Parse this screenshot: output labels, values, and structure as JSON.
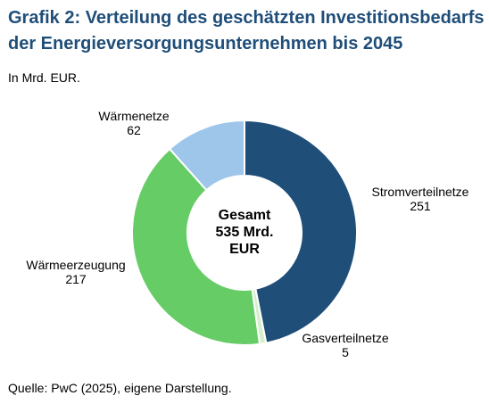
{
  "header": {
    "title_line1": "Grafik 2: Verteilung des geschätzten Investitionsbedarfs",
    "title_line2": "der Energieversorgungsunternehmen bis 2045",
    "subtitle": "In Mrd. EUR."
  },
  "footer": {
    "source": "Quelle: PwC (2025), eigene Darstellung."
  },
  "chart_data": {
    "type": "pie",
    "variant": "donut",
    "unit": "Mrd. EUR",
    "center_label": [
      "Gesamt",
      "535 Mrd.",
      "EUR"
    ],
    "labels_position": "outside",
    "slices": [
      {
        "label": "Stromverteilnetze",
        "value": 251,
        "color": "#1f4e79"
      },
      {
        "label": "Gasverteilnetze",
        "value": 5,
        "color": "#d5eecb"
      },
      {
        "label": "Wärmeerzeugung",
        "value": 217,
        "color": "#66cc66"
      },
      {
        "label": "Wärmenetze",
        "value": 62,
        "color": "#9dc6ea"
      }
    ]
  }
}
